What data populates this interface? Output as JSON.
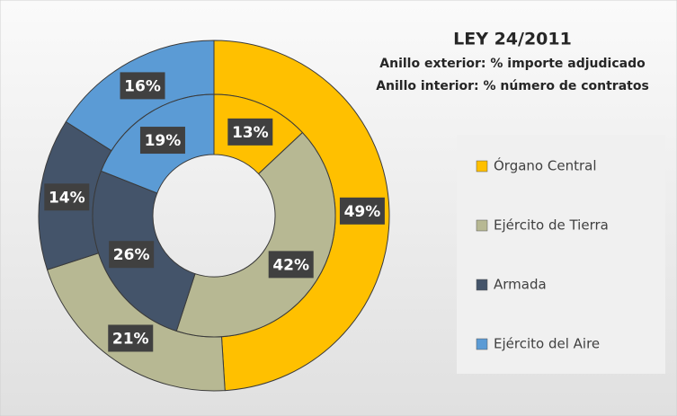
{
  "chart_data": {
    "type": "donut",
    "title": "LEY 24/2011",
    "subtitle": [
      "Anillo exterior: % importe adjudicado",
      "Anillo interior: % número de contratos"
    ],
    "categories": [
      "Órgano Central",
      "Ejército de Tierra",
      "Armada",
      "Ejército del Aire"
    ],
    "colors": [
      "#ffc000",
      "#b7b893",
      "#44546a",
      "#5b9bd5"
    ],
    "series": [
      {
        "values": [
          49,
          21,
          14,
          16
        ],
        "value_labels": [
          "49%",
          "21%",
          "14%",
          "16%"
        ]
      },
      {
        "values": [
          13,
          42,
          26,
          19
        ],
        "value_labels": [
          "13%",
          "42%",
          "26%",
          "19%"
        ]
      }
    ],
    "legend": "right"
  }
}
